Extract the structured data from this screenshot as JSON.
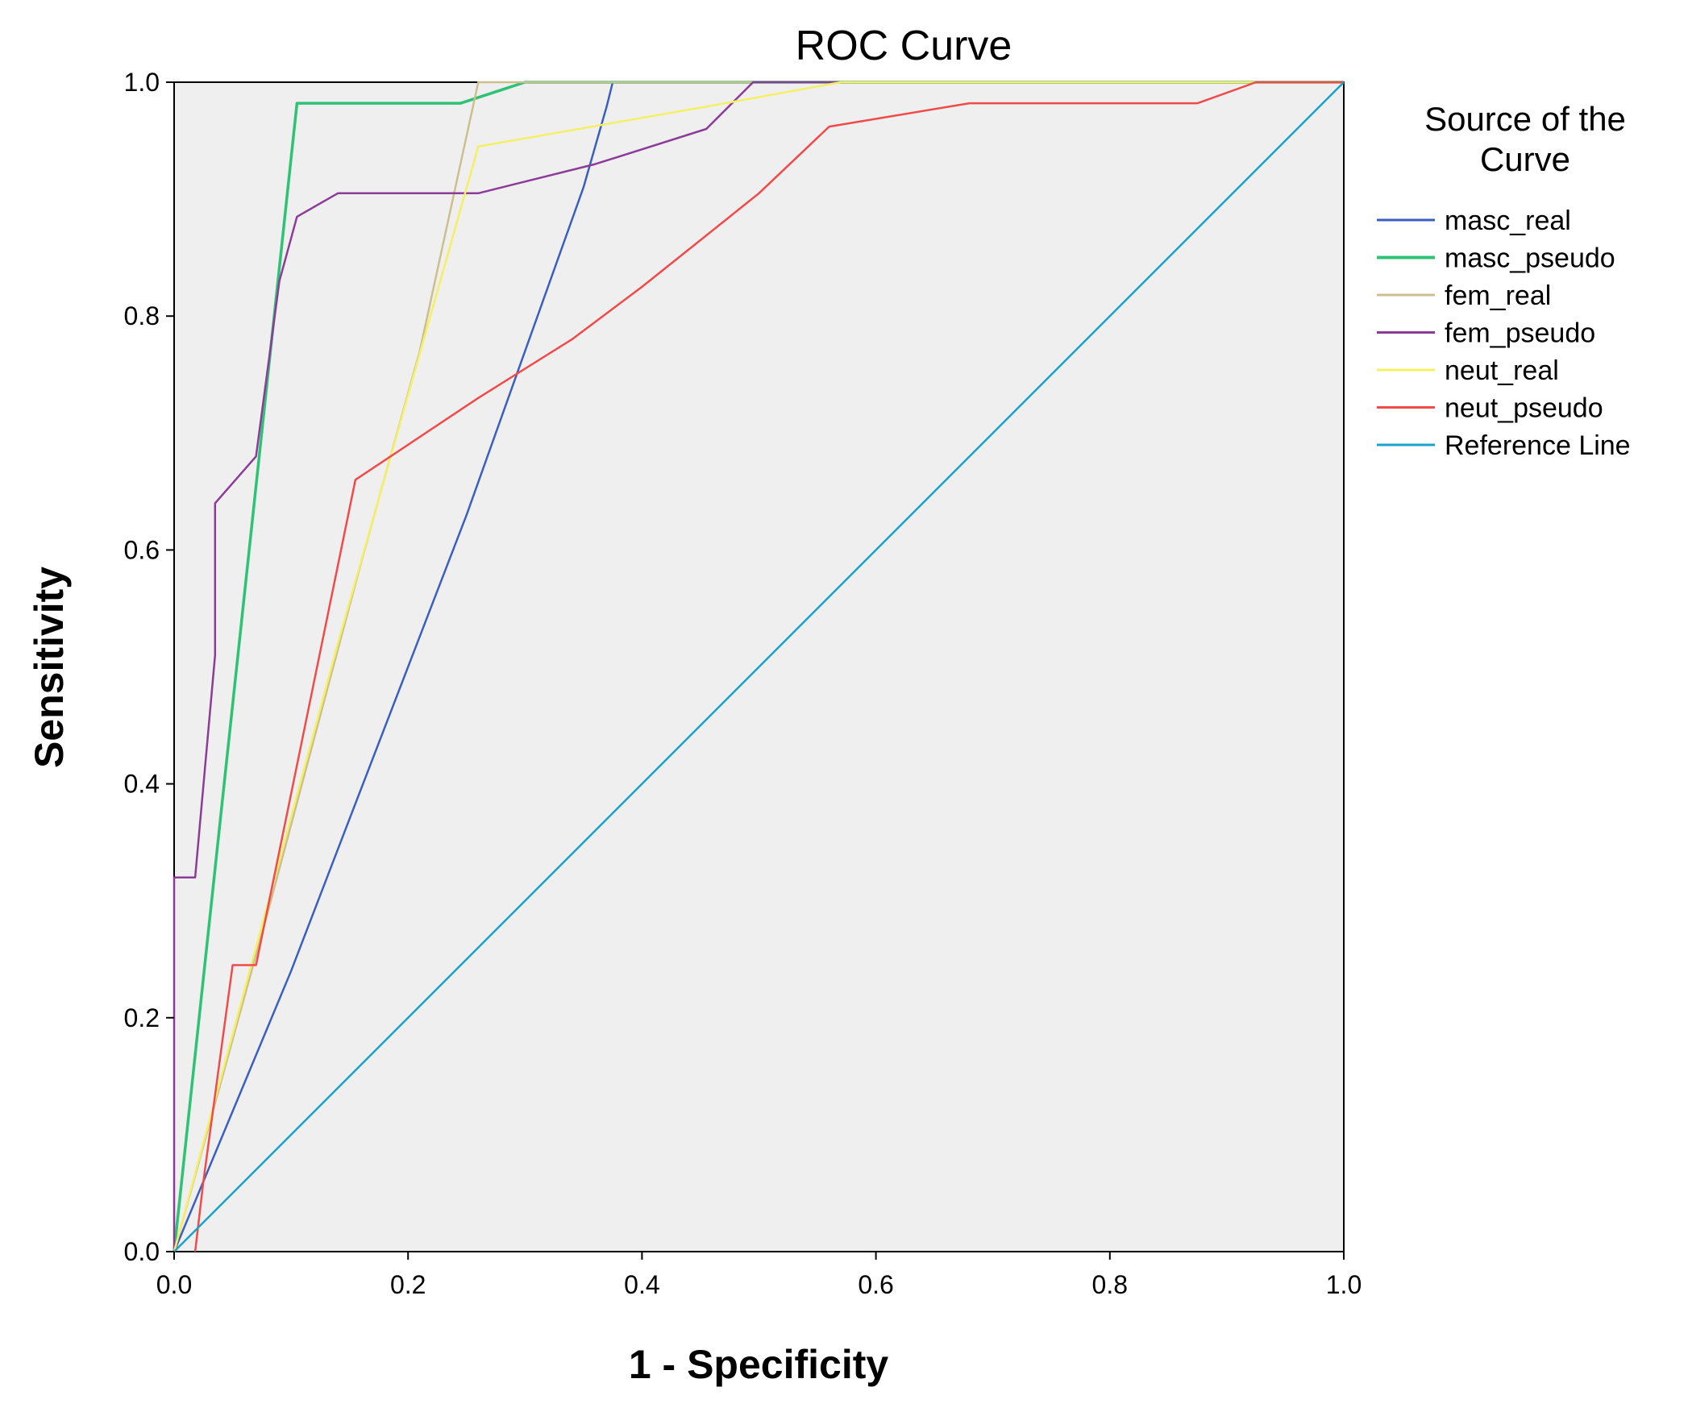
{
  "chart_data": {
    "type": "line",
    "title": "ROC Curve",
    "xlabel": "1 - Specificity",
    "ylabel": "Sensitivity",
    "xlim": [
      0.0,
      1.0
    ],
    "ylim": [
      0.0,
      1.0
    ],
    "x_ticks": [
      "0.0",
      "0.2",
      "0.4",
      "0.6",
      "0.8",
      "1.0"
    ],
    "y_ticks": [
      "0.0",
      "0.2",
      "0.4",
      "0.6",
      "0.8",
      "1.0"
    ],
    "grid": false,
    "plot_background": "#efefef",
    "legend": {
      "title_lines": [
        "Source of the",
        "Curve"
      ],
      "position": "right"
    },
    "series": [
      {
        "name": "masc_real",
        "color": "#3b5fc0",
        "points": [
          [
            0.0,
            0.0
          ],
          [
            0.05,
            0.12
          ],
          [
            0.1,
            0.24
          ],
          [
            0.15,
            0.37
          ],
          [
            0.2,
            0.5
          ],
          [
            0.25,
            0.63
          ],
          [
            0.3,
            0.77
          ],
          [
            0.35,
            0.91
          ],
          [
            0.37,
            0.98
          ],
          [
            0.375,
            1.0
          ],
          [
            1.0,
            1.0
          ]
        ]
      },
      {
        "name": "masc_pseudo",
        "color": "#2ec275",
        "points": [
          [
            0.0,
            0.0
          ],
          [
            0.105,
            0.982
          ],
          [
            0.245,
            0.982
          ],
          [
            0.3,
            1.0
          ],
          [
            1.0,
            1.0
          ]
        ]
      },
      {
        "name": "fem_real",
        "color": "#cbbf8f",
        "points": [
          [
            0.0,
            0.0
          ],
          [
            0.08,
            0.29
          ],
          [
            0.16,
            0.59
          ],
          [
            0.21,
            0.77
          ],
          [
            0.26,
            1.0
          ],
          [
            1.0,
            1.0
          ]
        ]
      },
      {
        "name": "fem_pseudo",
        "color": "#8c3c98",
        "points": [
          [
            0.0,
            0.0
          ],
          [
            0.0,
            0.32
          ],
          [
            0.018,
            0.32
          ],
          [
            0.035,
            0.51
          ],
          [
            0.035,
            0.64
          ],
          [
            0.07,
            0.68
          ],
          [
            0.09,
            0.83
          ],
          [
            0.105,
            0.885
          ],
          [
            0.14,
            0.905
          ],
          [
            0.26,
            0.905
          ],
          [
            0.36,
            0.93
          ],
          [
            0.455,
            0.96
          ],
          [
            0.495,
            1.0
          ],
          [
            1.0,
            1.0
          ]
        ]
      },
      {
        "name": "neut_real",
        "color": "#f5f063",
        "points": [
          [
            0.0,
            0.0
          ],
          [
            0.14,
            0.52
          ],
          [
            0.26,
            0.945
          ],
          [
            0.46,
            0.98
          ],
          [
            0.57,
            1.0
          ],
          [
            1.0,
            1.0
          ]
        ]
      },
      {
        "name": "neut_pseudo",
        "color": "#f04a4a",
        "points": [
          [
            0.018,
            0.0
          ],
          [
            0.025,
            0.06
          ],
          [
            0.05,
            0.245
          ],
          [
            0.07,
            0.245
          ],
          [
            0.155,
            0.66
          ],
          [
            0.26,
            0.73
          ],
          [
            0.34,
            0.78
          ],
          [
            0.4,
            0.825
          ],
          [
            0.45,
            0.865
          ],
          [
            0.5,
            0.905
          ],
          [
            0.56,
            0.962
          ],
          [
            0.68,
            0.982
          ],
          [
            0.875,
            0.982
          ],
          [
            0.925,
            1.0
          ],
          [
            1.0,
            1.0
          ]
        ]
      },
      {
        "name": "Reference Line",
        "color": "#1aa3c9",
        "points": [
          [
            0.0,
            0.0
          ],
          [
            1.0,
            1.0
          ]
        ]
      }
    ]
  }
}
